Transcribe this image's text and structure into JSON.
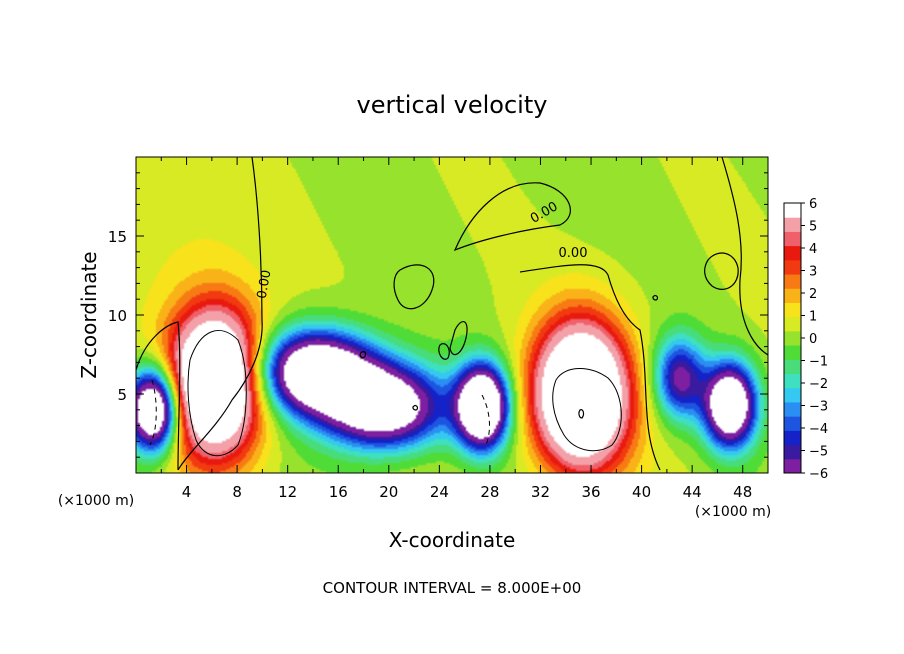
{
  "chart_data": {
    "type": "heatmap",
    "title": "vertical velocity",
    "xlabel": "X-coordinate",
    "ylabel": "Z-coordinate",
    "x_unit_label": "(×1000 m)",
    "x_ticks": [
      4,
      8,
      12,
      16,
      20,
      24,
      28,
      32,
      36,
      40,
      44,
      48
    ],
    "y_ticks": [
      5,
      10,
      15
    ],
    "xlim": [
      0,
      50
    ],
    "ylim": [
      0,
      20
    ],
    "footer": "CONTOUR INTERVAL = 8.000E+00",
    "colorbar": {
      "ticks": [
        "6",
        "5",
        "4",
        "3",
        "2",
        "1",
        "0",
        "−1",
        "−2",
        "−3",
        "−4",
        "−5",
        "−6"
      ],
      "range": [
        -6,
        6
      ],
      "colors": [
        "#7d1fa0",
        "#3a1a9e",
        "#1422c8",
        "#1e55e0",
        "#2a8ef2",
        "#35c8f0",
        "#3fe0c0",
        "#48dc7a",
        "#4fdc36",
        "#96e22c",
        "#d8ea24",
        "#f7e21c",
        "#f9b218",
        "#f77a14",
        "#f23a10",
        "#e81a10",
        "#f0606a",
        "#f3a0a8",
        "#ffffff"
      ]
    },
    "contour_labels": [
      "0.00",
      "0.00",
      "0.00"
    ],
    "features": [
      {
        "kind": "updraft",
        "x": 6.3,
        "z": 5.8,
        "peak": 10
      },
      {
        "kind": "updraft",
        "x": 35.2,
        "z": 4.9,
        "peak": 10
      },
      {
        "kind": "downdraft",
        "x": 1.4,
        "z": 4.0,
        "peak": -10
      },
      {
        "kind": "downdraft",
        "x": 27.4,
        "z": 4.2,
        "peak": -10
      },
      {
        "kind": "downdraft",
        "x": 14.2,
        "z": 6.4,
        "peak": -9
      },
      {
        "kind": "downdraft",
        "x": 19.5,
        "z": 4.2,
        "peak": -8
      },
      {
        "kind": "downdraft",
        "x": 47.0,
        "z": 4.3,
        "peak": -9
      },
      {
        "kind": "downdraft",
        "x": 43.0,
        "z": 6.0,
        "peak": -5
      }
    ]
  }
}
